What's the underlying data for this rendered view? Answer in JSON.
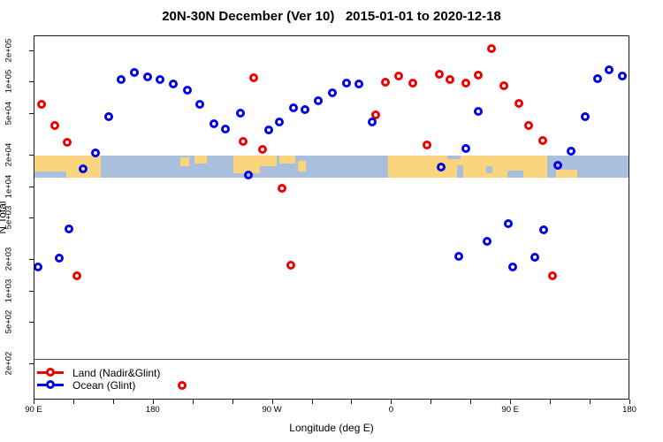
{
  "title": "20N-30N December (Ver 10)   2015-01-01 to 2020-12-18",
  "legend": {
    "items": [
      {
        "label": "Land (Nadir&Glint)",
        "color": "#ee0000"
      },
      {
        "label": "Ocean (Glint)",
        "color": "#0000ee"
      }
    ]
  },
  "chart_data": {
    "type": "scatter",
    "title": "20N-30N December (Ver 10)   2015-01-01 to 2020-12-18",
    "xlabel": "Longitude (deg E)",
    "ylabel": "N Total",
    "grid": false,
    "legend_position": "bottom-left",
    "x_axis": {
      "range_deg": [
        0,
        450
      ],
      "start_longitude_deg_e": 90,
      "wraps_dateline": true,
      "major_ticks_deg": [
        0,
        90,
        180,
        270,
        360,
        450
      ],
      "major_tick_labels": [
        "90 E",
        "180",
        "90 W",
        "0",
        "90 E",
        "180"
      ],
      "minor_step_deg": 30
    },
    "y_axis": {
      "scale": "log10",
      "range": [
        90,
        279000
      ],
      "log_top": 5.4447,
      "log_bottom": 1.9538,
      "tick_values": [
        200000,
        100000,
        50000,
        20000,
        10000,
        5000,
        2000,
        1000,
        500,
        200
      ],
      "tick_labels": [
        "2e+05",
        "1e+05",
        "5e+04",
        "2e+04",
        "1e+04",
        "5e+03",
        "2e+03",
        "1e+03",
        "5e+02",
        "2e+02"
      ]
    },
    "hline_value": 225,
    "map_band": {
      "value_top": 20000,
      "value_bottom": 12300,
      "ocean_color": "#a9bfdc",
      "land_color": "#fbd57d",
      "land_patches_deg": [
        [
          0,
          24,
          0,
          0.72
        ],
        [
          24,
          50,
          0,
          1.0
        ],
        [
          110,
          117,
          0.08,
          0.5
        ],
        [
          121,
          130,
          0,
          0.38
        ],
        [
          150,
          170,
          0,
          0.8
        ],
        [
          170,
          183,
          0,
          0.5
        ],
        [
          185,
          197,
          0,
          0.38
        ],
        [
          199,
          205,
          0.25,
          0.72
        ],
        [
          267,
          387,
          0,
          1.0
        ],
        [
          394,
          410,
          0.65,
          1.0
        ]
      ],
      "ocean_notches_deg": [
        [
          319,
          324,
          0.45,
          1.0
        ],
        [
          312,
          322,
          0,
          0.15
        ],
        [
          341,
          346,
          0.5,
          0.8
        ],
        [
          357,
          369,
          0.7,
          1.0
        ]
      ]
    },
    "series": [
      {
        "name": "Land (Nadir&Glint)",
        "color": "#ee0000",
        "points": [
          [
            5.3,
            62000
          ],
          [
            15.4,
            38800
          ],
          [
            24.7,
            26800
          ],
          [
            32.1,
            1410
          ],
          [
            111.7,
            125
          ],
          [
            157.8,
            27300
          ],
          [
            165.8,
            111000
          ],
          [
            172.5,
            22900
          ],
          [
            187.2,
            9700
          ],
          [
            193.9,
            1780
          ],
          [
            257.4,
            49000
          ],
          [
            264.8,
            101000
          ],
          [
            274.8,
            116000
          ],
          [
            285.5,
            99000
          ],
          [
            296.2,
            25300
          ],
          [
            305.6,
            121000
          ],
          [
            313.6,
            107000
          ],
          [
            325.6,
            99000
          ],
          [
            335.0,
            118000
          ],
          [
            345.0,
            212000
          ],
          [
            354.4,
            93500
          ],
          [
            365.7,
            63300
          ],
          [
            373.1,
            38800
          ],
          [
            383.8,
            27900
          ],
          [
            391.2,
            1410
          ]
        ]
      },
      {
        "name": "Ocean (Glint)",
        "color": "#0000ee",
        "points": [
          [
            2.7,
            1710
          ],
          [
            18.7,
            2080
          ],
          [
            26.1,
            3950
          ],
          [
            36.8,
            14900
          ],
          [
            46.1,
            21200
          ],
          [
            56.2,
            47200
          ],
          [
            65.5,
            107000
          ],
          [
            75.6,
            125000
          ],
          [
            85.6,
            114000
          ],
          [
            95.0,
            107000
          ],
          [
            105.0,
            97000
          ],
          [
            115.7,
            84700
          ],
          [
            125.0,
            62000
          ],
          [
            135.7,
            40400
          ],
          [
            144.4,
            35900
          ],
          [
            155.8,
            51000
          ],
          [
            161.8,
            13000
          ],
          [
            177.2,
            35200
          ],
          [
            185.2,
            42000
          ],
          [
            195.3,
            57400
          ],
          [
            204.6,
            55200
          ],
          [
            214.6,
            67100
          ],
          [
            224.7,
            80000
          ],
          [
            235.4,
            99000
          ],
          [
            244.7,
            97000
          ],
          [
            254.8,
            42000
          ],
          [
            306.9,
            15500
          ],
          [
            320.3,
            2160
          ],
          [
            325.6,
            23400
          ],
          [
            335.0,
            53100
          ],
          [
            341.7,
            3010
          ],
          [
            357.7,
            4450
          ],
          [
            361.1,
            1710
          ],
          [
            377.8,
            2120
          ],
          [
            384.5,
            3880
          ],
          [
            395.2,
            16100
          ],
          [
            405.2,
            22000
          ],
          [
            415.9,
            47200
          ],
          [
            425.3,
            109000
          ],
          [
            434.0,
            133000
          ],
          [
            444.0,
            116000
          ]
        ]
      }
    ]
  }
}
